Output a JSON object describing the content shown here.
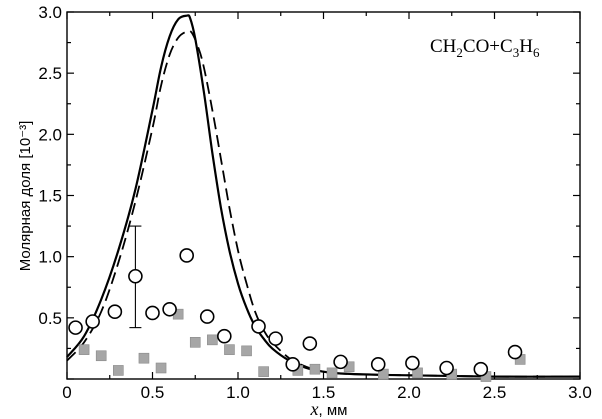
{
  "chart_data": {
    "type": "scatter",
    "title": "",
    "annotation": {
      "base1": "CH",
      "sub1": "2",
      "mid": "CO+C",
      "sub2": "3",
      "base2": "H",
      "sub3": "6"
    },
    "xlabel": {
      "var": "x",
      "unit": ", мм"
    },
    "ylabel": "Молярная доля  [10⁻³]",
    "xlim": [
      0,
      3.0
    ],
    "ylim": [
      0,
      3.0
    ],
    "x_ticks": [
      "0",
      "0.5",
      "1.0",
      "1.5",
      "2.0",
      "2.5",
      "3.0"
    ],
    "y_ticks": [
      "0.5",
      "1.0",
      "1.5",
      "2.0",
      "2.5",
      "3.0"
    ],
    "x_tick_values": [
      0,
      0.5,
      1.0,
      1.5,
      2.0,
      2.5,
      3.0
    ],
    "y_tick_values": [
      0.5,
      1.0,
      1.5,
      2.0,
      2.5,
      3.0
    ],
    "grid": false,
    "series": [
      {
        "style": "solid-line",
        "x": [
          0.0,
          0.1,
          0.2,
          0.3,
          0.4,
          0.5,
          0.55,
          0.6,
          0.65,
          0.7,
          0.72,
          0.75,
          0.8,
          0.85,
          0.9,
          0.95,
          1.0,
          1.05,
          1.1,
          1.15,
          1.2,
          1.3,
          1.4,
          1.5,
          1.6,
          1.8,
          2.0,
          2.5,
          3.0
        ],
        "y": [
          0.18,
          0.35,
          0.65,
          1.05,
          1.55,
          2.2,
          2.55,
          2.8,
          2.94,
          2.97,
          2.95,
          2.78,
          2.35,
          1.85,
          1.4,
          1.05,
          0.78,
          0.58,
          0.43,
          0.33,
          0.25,
          0.15,
          0.09,
          0.06,
          0.045,
          0.035,
          0.03,
          0.02,
          0.02
        ]
      },
      {
        "style": "dashed-line",
        "x": [
          0.0,
          0.1,
          0.2,
          0.3,
          0.4,
          0.5,
          0.55,
          0.6,
          0.65,
          0.7,
          0.73,
          0.77,
          0.8,
          0.85,
          0.9,
          0.95,
          1.0,
          1.05,
          1.1,
          1.15,
          1.2,
          1.3,
          1.4,
          1.5,
          1.6,
          1.8,
          2.0,
          2.5,
          3.0
        ],
        "y": [
          0.15,
          0.3,
          0.55,
          0.95,
          1.45,
          2.05,
          2.4,
          2.65,
          2.79,
          2.84,
          2.83,
          2.7,
          2.55,
          2.2,
          1.8,
          1.4,
          1.05,
          0.78,
          0.55,
          0.4,
          0.3,
          0.17,
          0.1,
          0.06,
          0.045,
          0.035,
          0.03,
          0.02,
          0.02
        ]
      },
      {
        "style": "open-circle",
        "x": [
          0.05,
          0.15,
          0.28,
          0.4,
          0.5,
          0.6,
          0.7,
          0.82,
          0.92,
          1.12,
          1.22,
          1.32,
          1.42,
          1.6,
          1.82,
          2.02,
          2.22,
          2.42,
          2.62
        ],
        "y": [
          0.42,
          0.47,
          0.55,
          0.84,
          0.54,
          0.57,
          1.01,
          0.51,
          0.35,
          0.43,
          0.33,
          0.12,
          0.29,
          0.14,
          0.12,
          0.13,
          0.09,
          0.08,
          0.22
        ]
      },
      {
        "style": "gray-square",
        "x": [
          0.1,
          0.2,
          0.3,
          0.45,
          0.55,
          0.65,
          0.75,
          0.85,
          0.95,
          1.05,
          1.15,
          1.35,
          1.45,
          1.55,
          1.65,
          1.85,
          2.05,
          2.25,
          2.45,
          2.65
        ],
        "y": [
          0.24,
          0.19,
          0.07,
          0.17,
          0.09,
          0.53,
          0.3,
          0.32,
          0.24,
          0.23,
          0.06,
          0.07,
          0.08,
          0.05,
          0.1,
          0.04,
          0.05,
          0.04,
          0.02,
          0.16
        ]
      }
    ],
    "error_bar": {
      "x": 0.4,
      "y": 0.84,
      "low": 0.42,
      "high": 1.25
    }
  }
}
